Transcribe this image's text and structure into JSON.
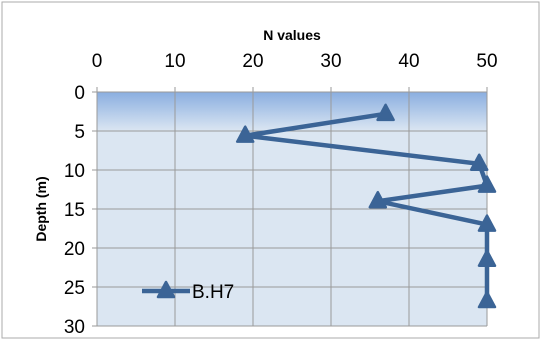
{
  "chart_data": {
    "type": "line",
    "x_axis_position": "top",
    "y_axis_reversed": true,
    "xlabel": "N values",
    "ylabel": "Depth (m)",
    "xlim": [
      0,
      50
    ],
    "ylim": [
      0,
      30
    ],
    "x_ticks": [
      "0",
      "10",
      "20",
      "30",
      "40",
      "50"
    ],
    "y_ticks": [
      "0",
      "5",
      "10",
      "15",
      "20",
      "25",
      "30"
    ],
    "grid": true,
    "legend_position": "lower-left",
    "series": [
      {
        "name": "B.H7",
        "color": "#3b6496",
        "marker": "triangle",
        "points": [
          {
            "x": 37,
            "y": 2.8
          },
          {
            "x": 19,
            "y": 5.6
          },
          {
            "x": 49,
            "y": 9.2
          },
          {
            "x": 50,
            "y": 12.0
          },
          {
            "x": 36,
            "y": 14.0
          },
          {
            "x": 50,
            "y": 17.0
          },
          {
            "x": 50,
            "y": 21.5
          },
          {
            "x": 50,
            "y": 26.8
          }
        ]
      }
    ]
  },
  "colors": {
    "background": "#ffffff",
    "plot_background": "#dbe6f2",
    "top_band_start": "#8aaee0",
    "top_band_end": "#dbe6f2",
    "gridline": "#9a9a9a",
    "border": "#ababab"
  }
}
